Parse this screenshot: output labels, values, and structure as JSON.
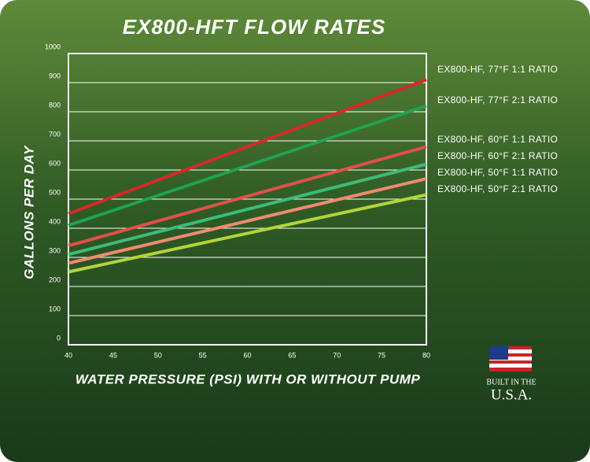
{
  "chart_data": {
    "type": "line",
    "title": "EX800-HFT FLOW RATES",
    "x_label": "WATER PRESSURE (PSI) WITH OR WITHOUT PUMP",
    "y_label": "GALLONS PER DAY",
    "x": [
      40,
      80
    ],
    "series": [
      {
        "name": "EX800-HF, 77°F 1:1 RATIO",
        "color": "#d42a2a",
        "values": [
          450,
          910
        ]
      },
      {
        "name": "EX800-HF, 77°F 2:1 RATIO",
        "color": "#1fa34f",
        "values": [
          410,
          820
        ]
      },
      {
        "name": "EX800-HF, 60°F 1:1 RATIO",
        "color": "#e0504a",
        "values": [
          340,
          680
        ]
      },
      {
        "name": "EX800-HF, 60°F 2:1 RATIO",
        "color": "#3dbb78",
        "values": [
          310,
          620
        ]
      },
      {
        "name": "EX800-HF, 50°F 1:1 RATIO",
        "color": "#f08a72",
        "values": [
          280,
          570
        ]
      },
      {
        "name": "EX800-HF, 50°F 2:1 RATIO",
        "color": "#b2d43a",
        "values": [
          250,
          515
        ]
      }
    ],
    "xlim": [
      40,
      80
    ],
    "xticks": [
      40,
      45,
      50,
      55,
      60,
      65,
      70,
      75,
      80
    ],
    "ylim": [
      0,
      1000
    ],
    "yticks": [
      0,
      100,
      200,
      300,
      400,
      500,
      600,
      700,
      800,
      900,
      1000
    ],
    "grid": true
  },
  "badge": {
    "line1": "BUILT IN THE",
    "line2": "U.S.A."
  }
}
